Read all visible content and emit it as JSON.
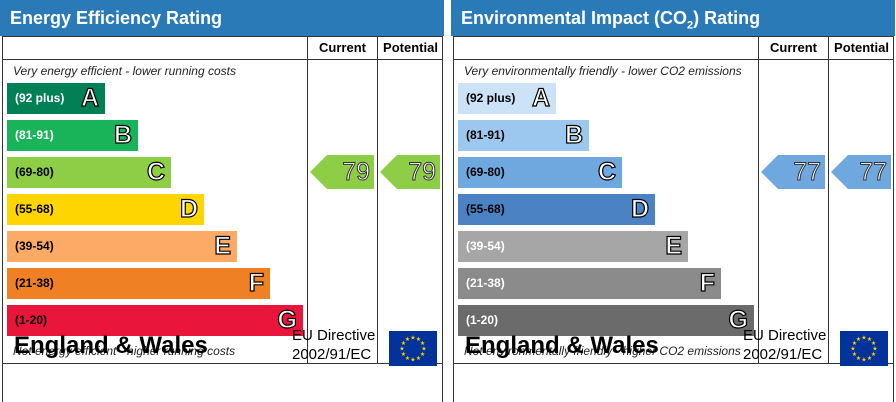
{
  "chart_data": [
    {
      "type": "bar",
      "title": "Energy Efficiency Rating",
      "columns": [
        "Current",
        "Potential"
      ],
      "top_caption": "Very energy efficient - lower running costs",
      "bottom_caption": "Not energy efficient - higher running costs",
      "bands": [
        {
          "range": "(92 plus)",
          "letter": "A",
          "color": "#008054",
          "text_color": "#ffffff"
        },
        {
          "range": "(81-91)",
          "letter": "B",
          "color": "#19b459",
          "text_color": "#ffffff"
        },
        {
          "range": "(69-80)",
          "letter": "C",
          "color": "#8dce46",
          "text_color": "#000000"
        },
        {
          "range": "(55-68)",
          "letter": "D",
          "color": "#ffd500",
          "text_color": "#000000"
        },
        {
          "range": "(39-54)",
          "letter": "E",
          "color": "#fcaa65",
          "text_color": "#000000"
        },
        {
          "range": "(21-38)",
          "letter": "F",
          "color": "#ef8023",
          "text_color": "#000000"
        },
        {
          "range": "(1-20)",
          "letter": "G",
          "color": "#e9153b",
          "text_color": "#000000"
        }
      ],
      "current": {
        "value": "79",
        "band": "C"
      },
      "potential": {
        "value": "79",
        "band": "C"
      },
      "arrow_color": "#8dce46",
      "header_color": "#2a7ab8",
      "region": "England & Wales",
      "directive": [
        "EU Directive",
        "2002/91/EC"
      ]
    },
    {
      "type": "bar",
      "title_prefix": "Environmental Impact (CO",
      "title_sub": "2",
      "title_suffix": ") Rating",
      "columns": [
        "Current",
        "Potential"
      ],
      "top_caption": "Very environmentally friendly - lower CO2 emissions",
      "bottom_caption": "Not environmentally friendly - higher CO2 emissions",
      "bands": [
        {
          "range": "(92 plus)",
          "letter": "A",
          "color": "#cce3f7",
          "text_color": "#000000"
        },
        {
          "range": "(81-91)",
          "letter": "B",
          "color": "#9cc8ef",
          "text_color": "#000000"
        },
        {
          "range": "(69-80)",
          "letter": "C",
          "color": "#6fa7df",
          "text_color": "#000000"
        },
        {
          "range": "(55-68)",
          "letter": "D",
          "color": "#4b82c4",
          "text_color": "#000000"
        },
        {
          "range": "(39-54)",
          "letter": "E",
          "color": "#a6a6a6",
          "text_color": "#ffffff"
        },
        {
          "range": "(21-38)",
          "letter": "F",
          "color": "#8b8b8b",
          "text_color": "#ffffff"
        },
        {
          "range": "(1-20)",
          "letter": "G",
          "color": "#6b6b6b",
          "text_color": "#ffffff"
        }
      ],
      "current": {
        "value": "77",
        "band": "C"
      },
      "potential": {
        "value": "77",
        "band": "C"
      },
      "arrow_color": "#6fa7df",
      "header_color": "#2a7ab8",
      "region": "England & Wales",
      "directive": [
        "EU Directive",
        "2002/91/EC"
      ]
    }
  ]
}
